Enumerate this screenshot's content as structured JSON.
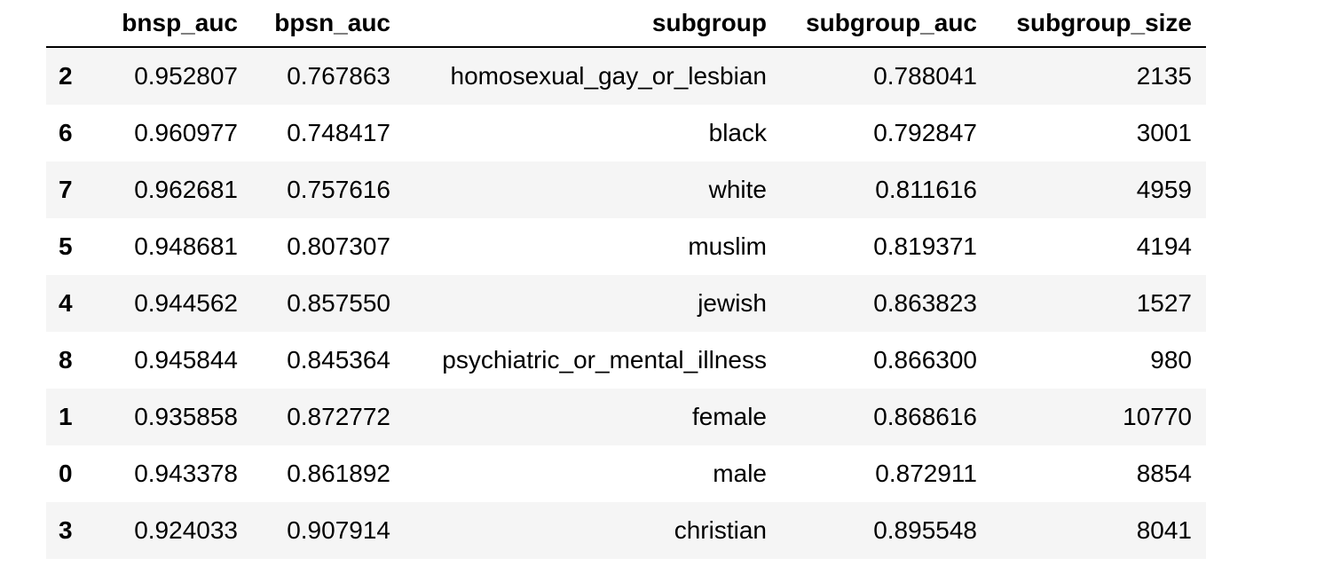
{
  "table": {
    "columns": [
      "",
      "bnsp_auc",
      "bpsn_auc",
      "subgroup",
      "subgroup_auc",
      "subgroup_size"
    ],
    "rows": [
      {
        "index": "2",
        "bnsp_auc": "0.952807",
        "bpsn_auc": "0.767863",
        "subgroup": "homosexual_gay_or_lesbian",
        "subgroup_auc": "0.788041",
        "subgroup_size": "2135"
      },
      {
        "index": "6",
        "bnsp_auc": "0.960977",
        "bpsn_auc": "0.748417",
        "subgroup": "black",
        "subgroup_auc": "0.792847",
        "subgroup_size": "3001"
      },
      {
        "index": "7",
        "bnsp_auc": "0.962681",
        "bpsn_auc": "0.757616",
        "subgroup": "white",
        "subgroup_auc": "0.811616",
        "subgroup_size": "4959"
      },
      {
        "index": "5",
        "bnsp_auc": "0.948681",
        "bpsn_auc": "0.807307",
        "subgroup": "muslim",
        "subgroup_auc": "0.819371",
        "subgroup_size": "4194"
      },
      {
        "index": "4",
        "bnsp_auc": "0.944562",
        "bpsn_auc": "0.857550",
        "subgroup": "jewish",
        "subgroup_auc": "0.863823",
        "subgroup_size": "1527"
      },
      {
        "index": "8",
        "bnsp_auc": "0.945844",
        "bpsn_auc": "0.845364",
        "subgroup": "psychiatric_or_mental_illness",
        "subgroup_auc": "0.866300",
        "subgroup_size": "980"
      },
      {
        "index": "1",
        "bnsp_auc": "0.935858",
        "bpsn_auc": "0.872772",
        "subgroup": "female",
        "subgroup_auc": "0.868616",
        "subgroup_size": "10770"
      },
      {
        "index": "0",
        "bnsp_auc": "0.943378",
        "bpsn_auc": "0.861892",
        "subgroup": "male",
        "subgroup_auc": "0.872911",
        "subgroup_size": "8854"
      },
      {
        "index": "3",
        "bnsp_auc": "0.924033",
        "bpsn_auc": "0.907914",
        "subgroup": "christian",
        "subgroup_auc": "0.895548",
        "subgroup_size": "8041"
      }
    ]
  },
  "colors": {
    "stripe": "#f5f5f5",
    "background": "#ffffff",
    "text": "#000000",
    "header_rule": "#000000"
  }
}
